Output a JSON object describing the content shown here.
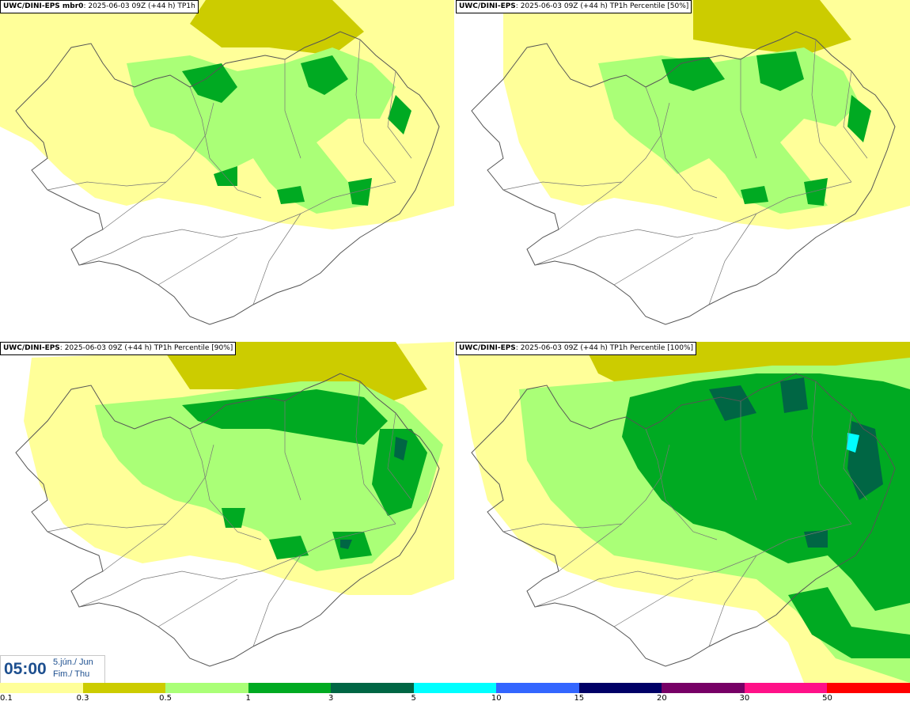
{
  "panels": [
    {
      "source": "UWC/DINI-EPS mbr0",
      "info": ": 2025-06-03 09Z (+44 h) TP1h",
      "level": 1
    },
    {
      "source": "UWC/DINI-EPS",
      "info": ": 2025-06-03 09Z (+44 h) TP1h Percentile [50%]",
      "level": 1
    },
    {
      "source": "UWC/DINI-EPS",
      "info": ": 2025-06-03 09Z (+44 h) TP1h Percentile [90%]",
      "level": 2
    },
    {
      "source": "UWC/DINI-EPS",
      "info": ": 2025-06-03 09Z (+44 h) TP1h Percentile [100%]",
      "level": 3
    }
  ],
  "time": {
    "clock": "05:00",
    "date_line1": "5.jún./ Jun",
    "date_line2": "Fim./ Thu"
  },
  "legend": {
    "ticks": [
      "0.1",
      "0.3",
      "0.5",
      "1",
      "3",
      "5",
      "10",
      "15",
      "20",
      "30",
      "50"
    ],
    "colors": [
      "#ffff99",
      "#cccc00",
      "#aaff77",
      "#00aa22",
      "#006644",
      "#00ffff",
      "#3366ff",
      "#000066",
      "#770066",
      "#ff1188",
      "#ff0000"
    ]
  },
  "colors": {
    "land_outline": "#555555",
    "road": "#777777"
  }
}
